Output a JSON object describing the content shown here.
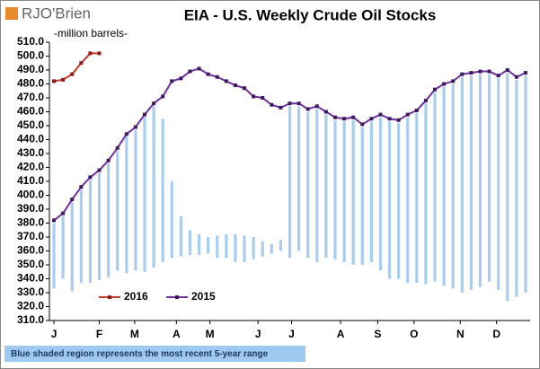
{
  "logo": "RJO'Brien",
  "footnote": "Blue shaded region represents the most recent 5-year range",
  "chart_data": {
    "type": "line",
    "title": "EIA - U.S. Weekly Crude Oil Stocks",
    "subtitle": "-million barrels-",
    "xlim": [
      0.5,
      53.5
    ],
    "xticks": [
      {
        "value": 1,
        "label": "J"
      },
      {
        "value": 6,
        "label": "F"
      },
      {
        "value": 9.9,
        "label": "M"
      },
      {
        "value": 14.5,
        "label": "A"
      },
      {
        "value": 18.2,
        "label": "M"
      },
      {
        "value": 23.5,
        "label": "J"
      },
      {
        "value": 27.2,
        "label": "J"
      },
      {
        "value": 32.6,
        "label": "A"
      },
      {
        "value": 36.7,
        "label": "S"
      },
      {
        "value": 40.7,
        "label": "O"
      },
      {
        "value": 45.8,
        "label": "N"
      },
      {
        "value": 49.8,
        "label": "D"
      }
    ],
    "ylim": [
      310,
      510
    ],
    "yticks": [
      {
        "value": 310,
        "label": "310.0"
      },
      {
        "value": 320,
        "label": "320.0"
      },
      {
        "value": 330,
        "label": "330.0"
      },
      {
        "value": 340,
        "label": "340.0"
      },
      {
        "value": 350,
        "label": "350.0"
      },
      {
        "value": 360,
        "label": "360.0"
      },
      {
        "value": 370,
        "label": "370.0"
      },
      {
        "value": 380,
        "label": "380.0"
      },
      {
        "value": 390,
        "label": "390.0"
      },
      {
        "value": 400,
        "label": "400.0"
      },
      {
        "value": 410,
        "label": "410.0"
      },
      {
        "value": 420,
        "label": "420.0"
      },
      {
        "value": 430,
        "label": "430.0"
      },
      {
        "value": 440,
        "label": "440.0"
      },
      {
        "value": 450,
        "label": "450.0"
      },
      {
        "value": 460,
        "label": "460.0"
      },
      {
        "value": 470,
        "label": "470.0"
      },
      {
        "value": 480,
        "label": "480.0"
      },
      {
        "value": 490,
        "label": "490.0"
      },
      {
        "value": 500,
        "label": "500.0"
      },
      {
        "value": 510,
        "label": "510.0"
      }
    ],
    "legend": "lower-left",
    "range": {
      "color": "#a9cdf0",
      "x": [
        1,
        2,
        3,
        4,
        5,
        6,
        7,
        8,
        9,
        10,
        11,
        12,
        13,
        14,
        15,
        16,
        17,
        18,
        19,
        20,
        21,
        22,
        23,
        24,
        25,
        26,
        27,
        28,
        29,
        30,
        31,
        32,
        33,
        34,
        35,
        36,
        37,
        38,
        39,
        40,
        41,
        42,
        43,
        44,
        45,
        46,
        47,
        48,
        49,
        50,
        51,
        52,
        53
      ],
      "low": [
        333,
        340,
        331,
        337,
        337,
        339,
        341,
        346,
        344,
        346,
        345,
        348,
        352,
        355,
        356,
        357,
        357,
        358,
        355,
        355,
        352,
        352,
        354,
        356,
        358,
        360,
        355,
        360,
        355,
        352,
        355,
        354,
        352,
        350,
        350,
        352,
        346,
        340,
        340,
        337,
        337,
        336,
        338,
        335,
        333,
        330,
        332,
        334,
        338,
        332,
        324,
        327,
        330
      ],
      "high": [
        380,
        385,
        395,
        404,
        411,
        416,
        423,
        432,
        442,
        447,
        456,
        464,
        455,
        410,
        385,
        375,
        372,
        370,
        371,
        372,
        372,
        371,
        370,
        367,
        365,
        368,
        464,
        464,
        460,
        462,
        458,
        454,
        453,
        454,
        449,
        453,
        456,
        453,
        452,
        456,
        459,
        466,
        474,
        478,
        480,
        485,
        486,
        487,
        487,
        484,
        488,
        483,
        486
      ]
    },
    "series": [
      {
        "name": "2016",
        "color": "#c0392b",
        "marker": "#8b1a1a",
        "x": [
          1,
          2,
          3,
          4,
          5,
          6
        ],
        "values": [
          482,
          483,
          487,
          495,
          502,
          502
        ]
      },
      {
        "name": "2015",
        "color": "#7030a0",
        "marker": "#3b1a5a",
        "x": [
          1,
          2,
          3,
          4,
          5,
          6,
          7,
          8,
          9,
          10,
          11,
          12,
          13,
          14,
          15,
          16,
          17,
          18,
          19,
          20,
          21,
          22,
          23,
          24,
          25,
          26,
          27,
          28,
          29,
          30,
          31,
          32,
          33,
          34,
          35,
          36,
          37,
          38,
          39,
          40,
          41,
          42,
          43,
          44,
          45,
          46,
          47,
          48,
          49,
          50,
          51,
          52,
          53
        ],
        "values": [
          382,
          387,
          397,
          406,
          413,
          418,
          425,
          434,
          444,
          449,
          458,
          466,
          471,
          482,
          484,
          489,
          491,
          487,
          485,
          482,
          479,
          477,
          471,
          470,
          465,
          463,
          466,
          466,
          462,
          464,
          460,
          456,
          455,
          456,
          451,
          455,
          458,
          455,
          454,
          458,
          461,
          468,
          476,
          480,
          482,
          487,
          488,
          489,
          489,
          486,
          490,
          485,
          488
        ]
      }
    ]
  }
}
